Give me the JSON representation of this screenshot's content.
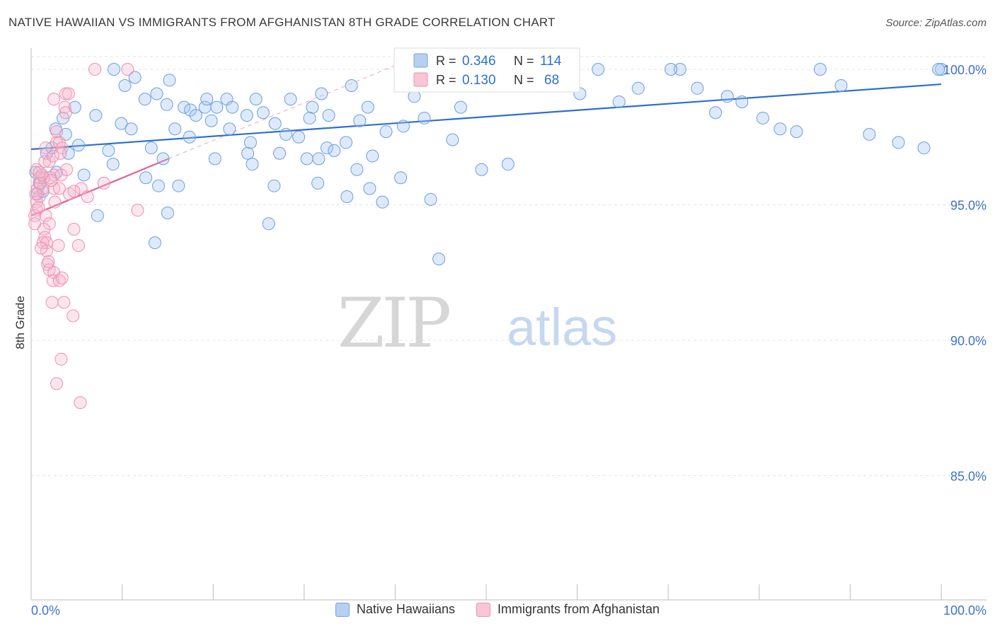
{
  "chart_data": {
    "type": "scatter",
    "title": "NATIVE HAWAIIAN VS IMMIGRANTS FROM AFGHANISTAN 8TH GRADE CORRELATION CHART",
    "source": "Source: ZipAtlas.com",
    "ylabel": "8th Grade",
    "xlim": [
      0,
      100
    ],
    "ylim": [
      80.5,
      100.8
    ],
    "x_tick_labels": [
      "0.0%",
      "100.0%"
    ],
    "y_ticks": [
      85,
      90,
      95,
      100
    ],
    "y_tick_labels": [
      "85.0%",
      "90.0%",
      "95.0%",
      "100.0%"
    ],
    "watermark": {
      "zip": "ZIP",
      "atlas": "atlas"
    },
    "stats": [
      {
        "r_label": "R =",
        "r_value": "0.346",
        "n_label": "N =",
        "n_value": "114"
      },
      {
        "r_label": "R =",
        "r_value": "0.130",
        "n_label": "N =",
        "n_value": "68"
      }
    ],
    "colors": {
      "blue": "#6a9ee3",
      "blue_line": "#2d6fcf",
      "pink": "#ee8fae",
      "pink_line": "#e0628e"
    },
    "series": [
      {
        "name": "Native Hawaiians",
        "color": "blue",
        "trend": {
          "x": [
            0,
            100
          ],
          "y": [
            97.05,
            99.45
          ]
        },
        "points": [
          [
            9.1,
            100
          ],
          [
            12.5,
            98.9
          ],
          [
            13.8,
            99.1
          ],
          [
            11.4,
            99.7
          ],
          [
            14.9,
            98.7
          ],
          [
            16.8,
            98.6
          ],
          [
            17.5,
            98.5
          ],
          [
            19.1,
            98.6
          ],
          [
            19.3,
            98.9
          ],
          [
            20.4,
            98.6
          ],
          [
            21.5,
            98.9
          ],
          [
            22.1,
            98.6
          ],
          [
            24.7,
            98.9
          ],
          [
            25.5,
            98.4
          ],
          [
            28.5,
            98.9
          ],
          [
            30.9,
            98.6
          ],
          [
            31.9,
            99.1
          ],
          [
            7.1,
            98.3
          ],
          [
            9.9,
            98.0
          ],
          [
            11.0,
            97.8
          ],
          [
            15.8,
            97.8
          ],
          [
            17.4,
            97.5
          ],
          [
            19.8,
            98.1
          ],
          [
            21.8,
            97.8
          ],
          [
            23.7,
            98.3
          ],
          [
            26.8,
            98.0
          ],
          [
            29.4,
            97.5
          ],
          [
            30.6,
            98.2
          ],
          [
            2.7,
            97.8
          ],
          [
            3.5,
            98.2
          ],
          [
            4.8,
            98.6
          ],
          [
            5.2,
            97.2
          ],
          [
            3.8,
            97.6
          ],
          [
            4.1,
            96.9
          ],
          [
            1.7,
            96.9
          ],
          [
            2.3,
            97.1
          ],
          [
            2.8,
            96.2
          ],
          [
            0.9,
            95.8
          ],
          [
            1.4,
            96.0
          ],
          [
            0.7,
            95.4
          ],
          [
            1.3,
            95.5
          ],
          [
            7.3,
            94.6
          ],
          [
            9.0,
            96.5
          ],
          [
            14.5,
            96.7
          ],
          [
            20.2,
            96.7
          ],
          [
            23.8,
            96.9
          ],
          [
            24.3,
            96.5
          ],
          [
            27.3,
            96.9
          ],
          [
            30.3,
            96.7
          ],
          [
            31.6,
            96.7
          ],
          [
            32.5,
            97.1
          ],
          [
            34.6,
            97.3
          ],
          [
            37.0,
            98.6
          ],
          [
            37.5,
            96.8
          ],
          [
            40.9,
            97.9
          ],
          [
            43.2,
            98.2
          ],
          [
            47.2,
            98.6
          ],
          [
            50.1,
            100
          ],
          [
            54.2,
            100
          ],
          [
            60.3,
            99.1
          ],
          [
            62.3,
            100
          ],
          [
            64.6,
            98.8
          ],
          [
            66.7,
            99.3
          ],
          [
            71.3,
            100
          ],
          [
            73.2,
            99.3
          ],
          [
            75.2,
            98.4
          ],
          [
            76.5,
            99.0
          ],
          [
            78.1,
            98.8
          ],
          [
            80.4,
            98.2
          ],
          [
            82.3,
            97.8
          ],
          [
            84.1,
            97.7
          ],
          [
            86.7,
            100
          ],
          [
            89.0,
            99.4
          ],
          [
            92.1,
            97.6
          ],
          [
            95.3,
            97.3
          ],
          [
            98.1,
            97.1
          ],
          [
            100.0,
            100
          ],
          [
            99.7,
            100
          ],
          [
            70.3,
            100
          ],
          [
            55.3,
            99.7
          ],
          [
            53.1,
            100
          ],
          [
            42.1,
            99.0
          ],
          [
            39.0,
            97.7
          ],
          [
            36.1,
            98.1
          ],
          [
            35.2,
            99.4
          ],
          [
            33.3,
            97.0
          ],
          [
            32.7,
            98.3
          ],
          [
            18.1,
            98.3
          ],
          [
            15.2,
            99.6
          ],
          [
            13.2,
            97.1
          ],
          [
            28.0,
            97.6
          ],
          [
            24.1,
            97.3
          ],
          [
            8.5,
            97.0
          ],
          [
            10.3,
            99.4
          ],
          [
            12.6,
            96.0
          ],
          [
            14.0,
            95.7
          ],
          [
            16.2,
            95.7
          ],
          [
            15.0,
            94.7
          ],
          [
            13.6,
            93.6
          ],
          [
            26.1,
            94.3
          ],
          [
            26.7,
            95.7
          ],
          [
            31.5,
            95.8
          ],
          [
            34.7,
            95.3
          ],
          [
            37.2,
            95.6
          ],
          [
            38.6,
            95.1
          ],
          [
            40.6,
            96.0
          ],
          [
            43.9,
            95.2
          ],
          [
            35.8,
            96.3
          ],
          [
            46.3,
            97.4
          ],
          [
            49.5,
            96.3
          ],
          [
            52.4,
            96.5
          ],
          [
            44.8,
            93.0
          ],
          [
            5.8,
            96.1
          ],
          [
            0.5,
            96.2
          ]
        ]
      },
      {
        "name": "Immigrants from Afghanistan",
        "color": "pink",
        "trend": {
          "x": [
            0,
            15.1
          ],
          "y": [
            94.6,
            96.7
          ]
        },
        "dash": {
          "x": [
            15.1,
            40.4
          ],
          "y": [
            96.7,
            100.2
          ]
        },
        "points": [
          [
            7.0,
            100
          ],
          [
            10.6,
            100
          ],
          [
            3.8,
            99.1
          ],
          [
            2.5,
            98.9
          ],
          [
            3.7,
            98.6
          ],
          [
            3.8,
            98.4
          ],
          [
            2.8,
            97.7
          ],
          [
            2.8,
            97.3
          ],
          [
            3.1,
            97.3
          ],
          [
            3.4,
            97.1
          ],
          [
            2.0,
            96.6
          ],
          [
            2.5,
            96.1
          ],
          [
            3.3,
            96.1
          ],
          [
            3.9,
            96.3
          ],
          [
            2.1,
            96.0
          ],
          [
            2.5,
            95.6
          ],
          [
            3.1,
            95.6
          ],
          [
            4.2,
            95.4
          ],
          [
            5.5,
            95.6
          ],
          [
            6.2,
            95.3
          ],
          [
            8.0,
            95.8
          ],
          [
            0.6,
            96.3
          ],
          [
            0.9,
            96.0
          ],
          [
            0.7,
            95.6
          ],
          [
            0.9,
            95.3
          ],
          [
            1.3,
            95.6
          ],
          [
            0.6,
            95.1
          ],
          [
            0.6,
            94.8
          ],
          [
            0.4,
            94.6
          ],
          [
            0.4,
            94.3
          ],
          [
            1.6,
            94.6
          ],
          [
            2.0,
            94.3
          ],
          [
            1.4,
            94.1
          ],
          [
            1.5,
            93.8
          ],
          [
            1.3,
            93.6
          ],
          [
            1.7,
            93.6
          ],
          [
            1.7,
            93.3
          ],
          [
            1.8,
            92.8
          ],
          [
            2.0,
            92.6
          ],
          [
            2.5,
            92.5
          ],
          [
            2.4,
            92.2
          ],
          [
            3.1,
            92.2
          ],
          [
            3.4,
            92.3
          ],
          [
            2.3,
            91.4
          ],
          [
            3.6,
            91.4
          ],
          [
            4.6,
            90.9
          ],
          [
            3.3,
            89.3
          ],
          [
            2.8,
            88.4
          ],
          [
            5.4,
            87.7
          ],
          [
            4.7,
            94.1
          ],
          [
            5.2,
            93.5
          ],
          [
            1.0,
            95.8
          ],
          [
            1.5,
            96.6
          ],
          [
            2.4,
            96.8
          ],
          [
            4.7,
            95.5
          ],
          [
            11.7,
            94.8
          ],
          [
            1.1,
            93.4
          ],
          [
            3.0,
            93.5
          ],
          [
            1.9,
            92.9
          ],
          [
            2.6,
            95.1
          ],
          [
            1.2,
            96.1
          ],
          [
            0.8,
            94.9
          ],
          [
            2.2,
            95.9
          ],
          [
            3.2,
            96.9
          ],
          [
            1.6,
            97.1
          ],
          [
            4.1,
            99.1
          ],
          [
            0.5,
            95.4
          ],
          [
            0.9,
            96.2
          ]
        ]
      }
    ]
  }
}
